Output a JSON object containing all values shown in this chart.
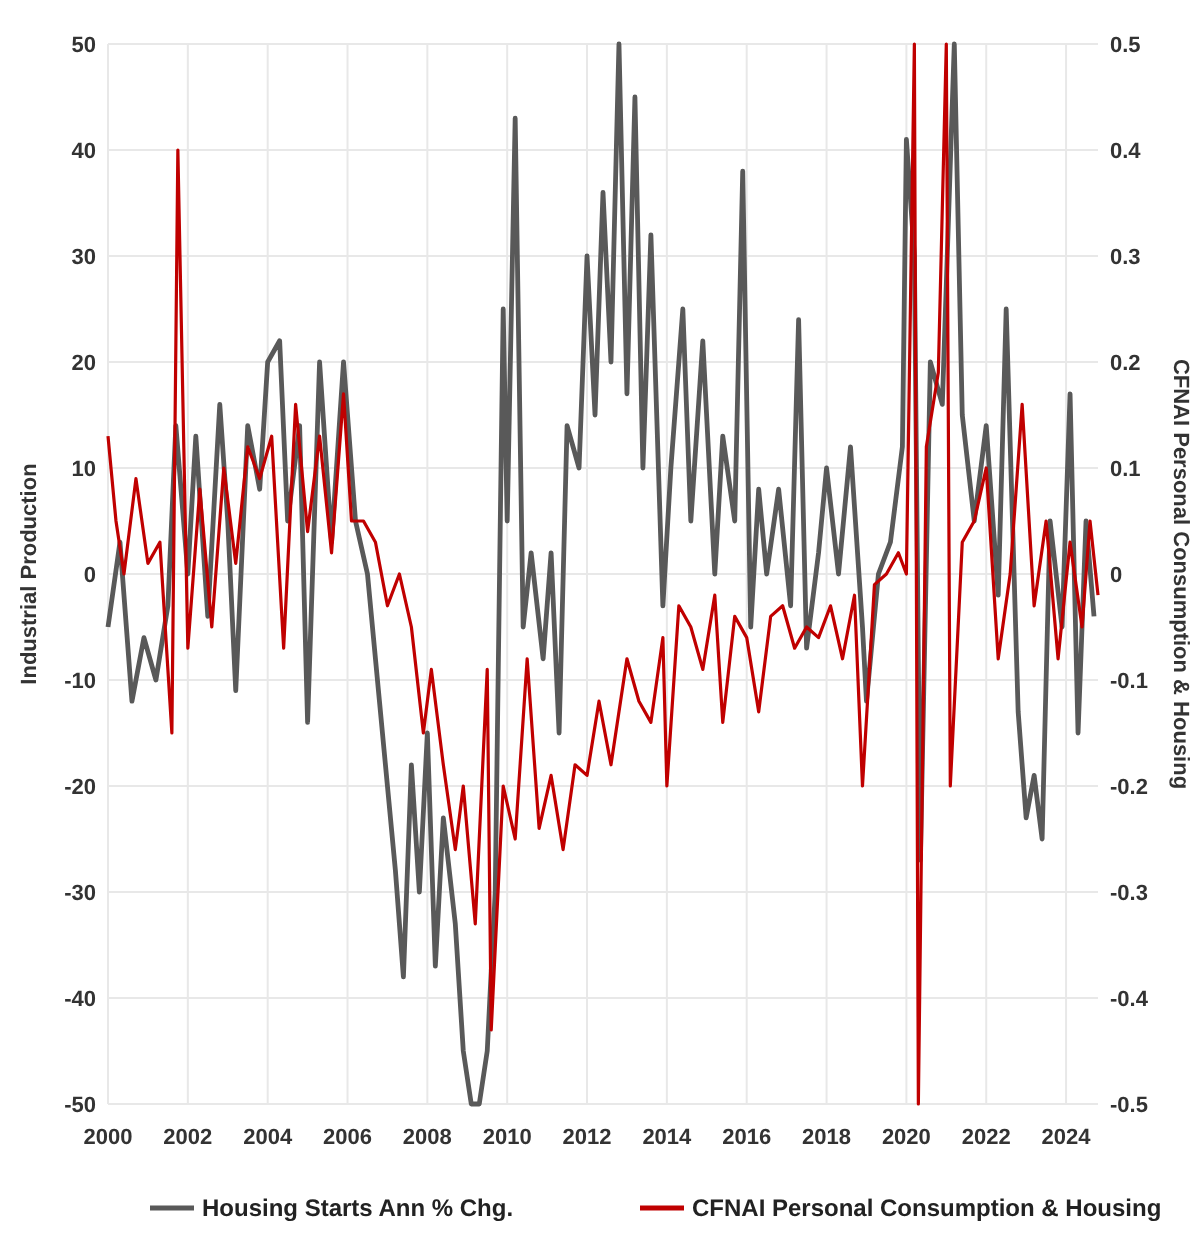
{
  "chart_data": {
    "type": "line",
    "ylabel": "Industrial Production",
    "y2label": "CFNAI Personal Consumption & Housing",
    "xlim": [
      2000,
      2024.8
    ],
    "xticks": [
      2000,
      2002,
      2004,
      2006,
      2008,
      2010,
      2012,
      2014,
      2016,
      2018,
      2020,
      2022,
      2024
    ],
    "ylim": [
      -50,
      50
    ],
    "yticks": [
      -50,
      -40,
      -30,
      -20,
      -10,
      0,
      10,
      20,
      30,
      40,
      50
    ],
    "y2lim": [
      -0.5,
      0.5
    ],
    "y2ticks": [
      -0.5,
      -0.4,
      -0.3,
      -0.2,
      -0.1,
      0,
      0.1,
      0.2,
      0.3,
      0.4,
      0.5
    ],
    "grid": true,
    "legend": "bottom",
    "line_style": "solid",
    "marker": "none",
    "series": [
      {
        "name": "Housing Starts Ann % Chg.",
        "color": "#595959",
        "x": [
          2000.0,
          2000.3,
          2000.6,
          2000.9,
          2001.2,
          2001.5,
          2001.7,
          2002.0,
          2002.2,
          2002.5,
          2002.8,
          2003.0,
          2003.2,
          2003.5,
          2003.8,
          2004.0,
          2004.3,
          2004.5,
          2004.8,
          2005.0,
          2005.3,
          2005.6,
          2005.9,
          2006.2,
          2006.5,
          2006.8,
          2007.0,
          2007.2,
          2007.4,
          2007.6,
          2007.8,
          2008.0,
          2008.2,
          2008.4,
          2008.7,
          2008.9,
          2009.1,
          2009.3,
          2009.5,
          2009.7,
          2009.9,
          2010.0,
          2010.2,
          2010.4,
          2010.6,
          2010.9,
          2011.1,
          2011.3,
          2011.5,
          2011.8,
          2012.0,
          2012.2,
          2012.4,
          2012.6,
          2012.8,
          2013.0,
          2013.2,
          2013.4,
          2013.6,
          2013.9,
          2014.1,
          2014.4,
          2014.6,
          2014.9,
          2015.2,
          2015.4,
          2015.7,
          2015.9,
          2016.1,
          2016.3,
          2016.5,
          2016.8,
          2017.1,
          2017.3,
          2017.5,
          2017.8,
          2018.0,
          2018.3,
          2018.6,
          2018.9,
          2019.0,
          2019.3,
          2019.6,
          2019.9,
          2020.0,
          2020.2,
          2020.35,
          2020.6,
          2020.9,
          2021.2,
          2021.4,
          2021.7,
          2022.0,
          2022.3,
          2022.5,
          2022.8,
          2023.0,
          2023.2,
          2023.4,
          2023.6,
          2023.9,
          2024.1,
          2024.3,
          2024.5,
          2024.7
        ],
        "values": [
          -5,
          3,
          -12,
          -6,
          -10,
          -3,
          14,
          0,
          13,
          -4,
          16,
          5,
          -11,
          14,
          8,
          20,
          22,
          5,
          14,
          -14,
          20,
          3,
          20,
          5,
          0,
          -12,
          -20,
          -28,
          -38,
          -18,
          -30,
          -15,
          -37,
          -23,
          -33,
          -45,
          -50,
          -50,
          -45,
          -30,
          25,
          5,
          43,
          -5,
          2,
          -8,
          2,
          -15,
          14,
          10,
          30,
          15,
          36,
          20,
          50,
          17,
          45,
          10,
          32,
          -3,
          10,
          25,
          5,
          22,
          0,
          13,
          5,
          38,
          -5,
          8,
          0,
          8,
          -3,
          24,
          -7,
          2,
          10,
          0,
          12,
          -5,
          -12,
          0,
          3,
          12,
          41,
          30,
          -27,
          20,
          16,
          50,
          15,
          5,
          14,
          -2,
          25,
          -13,
          -23,
          -19,
          -25,
          5,
          -5,
          17,
          -15,
          5,
          -4
        ]
      },
      {
        "name": "CFNAI Personal Consumption & Housing",
        "color": "#c00000",
        "axis": "y2",
        "x": [
          2000.0,
          2000.2,
          2000.4,
          2000.7,
          2001.0,
          2001.3,
          2001.6,
          2001.75,
          2002.0,
          2002.3,
          2002.6,
          2002.9,
          2003.2,
          2003.5,
          2003.8,
          2004.1,
          2004.4,
          2004.7,
          2005.0,
          2005.3,
          2005.6,
          2005.9,
          2006.1,
          2006.4,
          2006.7,
          2007.0,
          2007.3,
          2007.6,
          2007.9,
          2008.1,
          2008.4,
          2008.7,
          2008.9,
          2009.2,
          2009.5,
          2009.6,
          2009.9,
          2010.2,
          2010.5,
          2010.8,
          2011.1,
          2011.4,
          2011.7,
          2012.0,
          2012.3,
          2012.6,
          2013.0,
          2013.3,
          2013.6,
          2013.9,
          2014.0,
          2014.3,
          2014.6,
          2014.9,
          2015.2,
          2015.4,
          2015.7,
          2016.0,
          2016.3,
          2016.6,
          2016.9,
          2017.2,
          2017.5,
          2017.8,
          2018.1,
          2018.4,
          2018.7,
          2018.9,
          2019.2,
          2019.5,
          2019.8,
          2020.0,
          2020.2,
          2020.3,
          2020.5,
          2020.8,
          2021.0,
          2021.1,
          2021.4,
          2021.7,
          2022.0,
          2022.3,
          2022.6,
          2022.9,
          2023.2,
          2023.5,
          2023.8,
          2024.1,
          2024.4,
          2024.6,
          2024.8
        ],
        "values": [
          0.13,
          0.05,
          0,
          0.09,
          0.01,
          0.03,
          -0.15,
          0.4,
          -0.07,
          0.08,
          -0.05,
          0.1,
          0.01,
          0.12,
          0.09,
          0.13,
          -0.07,
          0.16,
          0.04,
          0.13,
          0.02,
          0.17,
          0.05,
          0.05,
          0.03,
          -0.03,
          0,
          -0.05,
          -0.15,
          -0.09,
          -0.18,
          -0.26,
          -0.2,
          -0.33,
          -0.09,
          -0.43,
          -0.2,
          -0.25,
          -0.08,
          -0.24,
          -0.19,
          -0.26,
          -0.18,
          -0.19,
          -0.12,
          -0.18,
          -0.08,
          -0.12,
          -0.14,
          -0.06,
          -0.2,
          -0.03,
          -0.05,
          -0.09,
          -0.02,
          -0.14,
          -0.04,
          -0.06,
          -0.13,
          -0.04,
          -0.03,
          -0.07,
          -0.05,
          -0.06,
          -0.03,
          -0.08,
          -0.02,
          -0.2,
          -0.01,
          0,
          0.02,
          0,
          0.5,
          -0.5,
          0.12,
          0.19,
          0.5,
          -0.2,
          0.03,
          0.05,
          0.1,
          -0.08,
          0,
          0.16,
          -0.03,
          0.05,
          -0.08,
          0.03,
          -0.05,
          0.05,
          -0.02
        ]
      }
    ]
  }
}
